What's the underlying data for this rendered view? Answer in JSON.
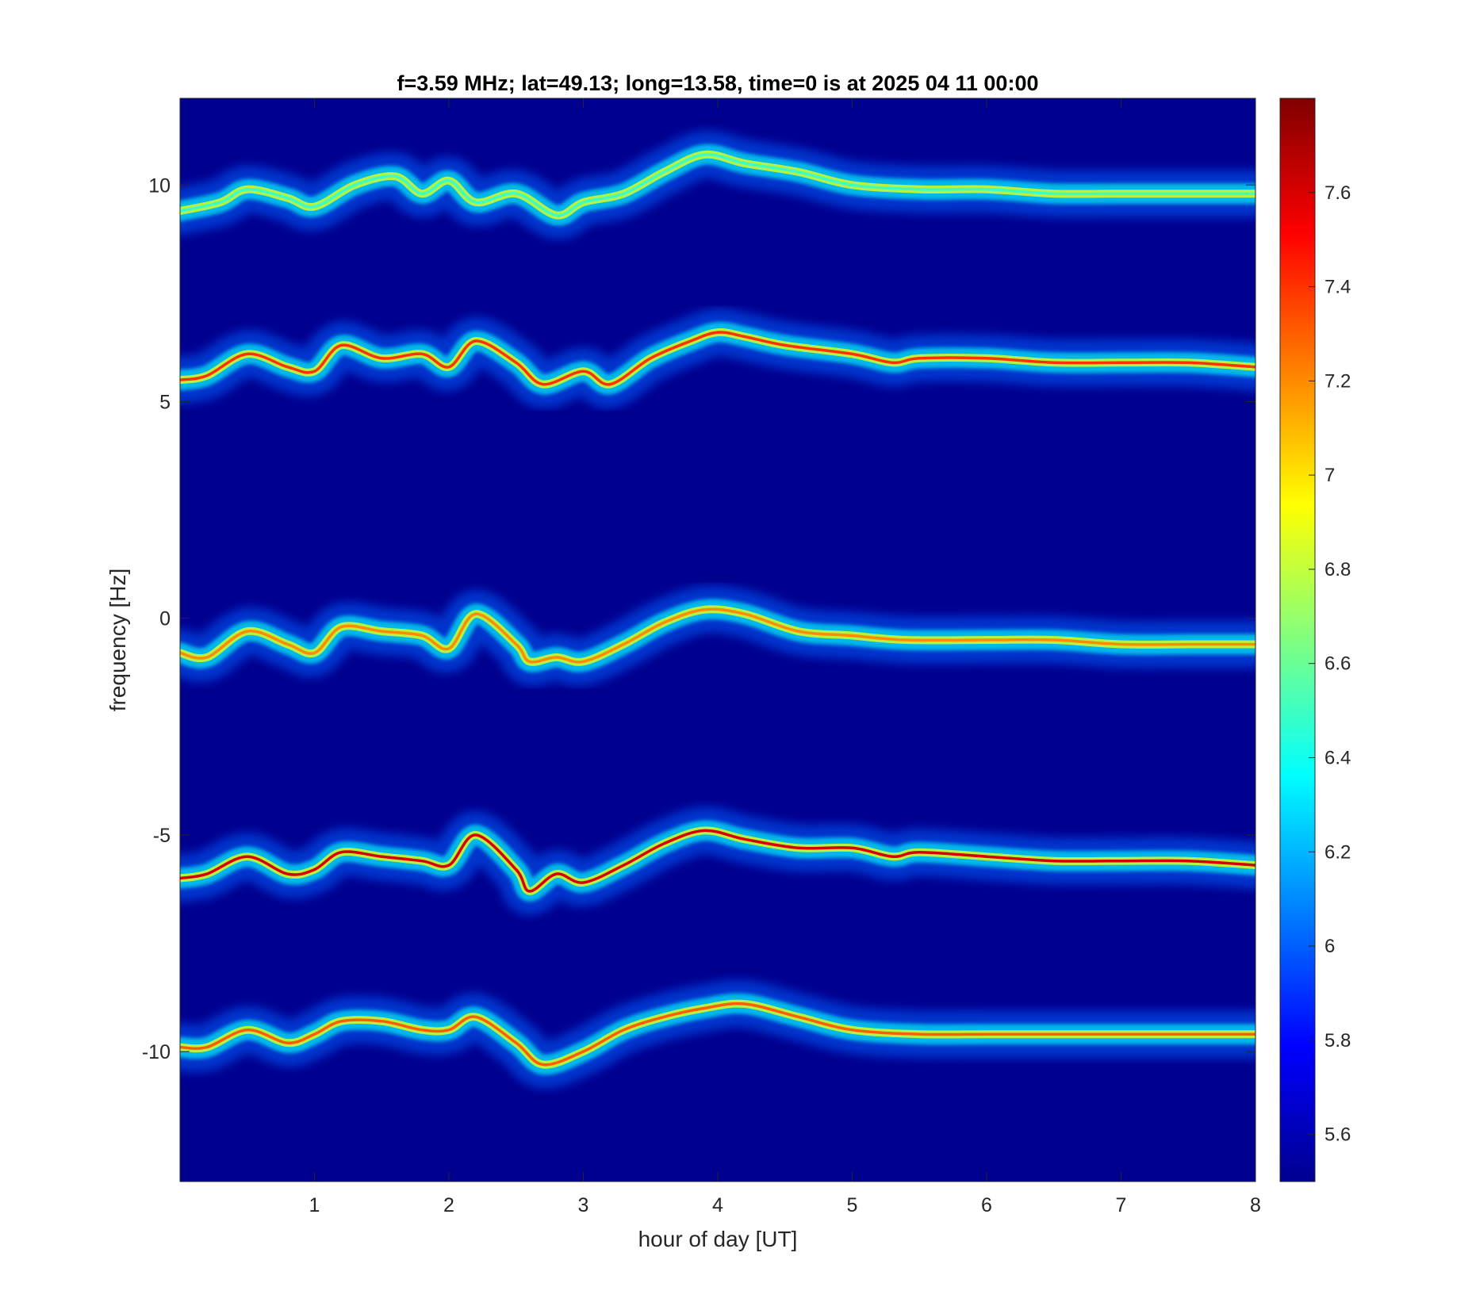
{
  "chart_data": {
    "type": "heatmap",
    "title": "f=3.59 MHz;  lat=49.13; long=13.58, time=0 is at 2025 04 11 00:00",
    "xlabel": "hour of day [UT]",
    "ylabel": "frequency [Hz]",
    "xlim": [
      0,
      8
    ],
    "ylim": [
      -13,
      12
    ],
    "xticks": [
      1,
      2,
      3,
      4,
      5,
      6,
      7,
      8
    ],
    "xtick_labels": [
      "1",
      "2",
      "3",
      "4",
      "5",
      "6",
      "7",
      "8"
    ],
    "yticks": [
      10,
      5,
      0,
      -5,
      -10
    ],
    "ytick_labels": [
      "10",
      "5",
      "0",
      "-5",
      "-10"
    ],
    "colorbar": {
      "colormap": "jet",
      "clim": [
        5.5,
        7.8
      ],
      "ticks": [
        7.6,
        7.4,
        7.2,
        7,
        6.8,
        6.6,
        6.4,
        6.2,
        6,
        5.8,
        5.6
      ],
      "tick_labels": [
        "7.6",
        "7.4",
        "7.2",
        "7",
        "6.8",
        "6.6",
        "6.4",
        "6.2",
        "6",
        "5.8",
        "5.6"
      ]
    },
    "background_color": "#00008f",
    "traces": [
      {
        "offset": 10,
        "peak_level": 6.5,
        "x": [
          0,
          0.3,
          0.5,
          0.8,
          1.0,
          1.3,
          1.6,
          1.8,
          2.0,
          2.2,
          2.5,
          2.8,
          3.0,
          3.3,
          3.6,
          3.9,
          4.2,
          4.6,
          5.0,
          5.5,
          6.0,
          6.5,
          7.0,
          7.5,
          8.0
        ],
        "y": [
          9.4,
          9.6,
          9.9,
          9.7,
          9.5,
          10.0,
          10.2,
          9.8,
          10.1,
          9.6,
          9.8,
          9.3,
          9.6,
          9.8,
          10.3,
          10.7,
          10.5,
          10.3,
          10.0,
          9.9,
          9.9,
          9.8,
          9.8,
          9.8,
          9.8
        ]
      },
      {
        "offset": 5,
        "peak_level": 7.4,
        "x": [
          0,
          0.2,
          0.5,
          0.8,
          1.0,
          1.2,
          1.5,
          1.8,
          2.0,
          2.2,
          2.5,
          2.7,
          3.0,
          3.2,
          3.5,
          3.8,
          4.0,
          4.2,
          4.5,
          5.0,
          5.3,
          5.5,
          6.0,
          6.5,
          7.0,
          7.5,
          8.0
        ],
        "y": [
          5.5,
          5.6,
          6.1,
          5.8,
          5.7,
          6.3,
          6.0,
          6.1,
          5.8,
          6.4,
          5.9,
          5.4,
          5.7,
          5.4,
          6.0,
          6.4,
          6.6,
          6.5,
          6.3,
          6.1,
          5.9,
          6.0,
          6.0,
          5.9,
          5.9,
          5.9,
          5.8
        ]
      },
      {
        "offset": 0,
        "peak_level": 7.2,
        "x": [
          0,
          0.2,
          0.5,
          0.8,
          1.0,
          1.2,
          1.5,
          1.8,
          2.0,
          2.2,
          2.5,
          2.6,
          2.8,
          3.0,
          3.3,
          3.6,
          3.9,
          4.2,
          4.6,
          5.0,
          5.4,
          6.0,
          6.5,
          7.0,
          7.5,
          8.0
        ],
        "y": [
          -0.8,
          -0.9,
          -0.3,
          -0.6,
          -0.8,
          -0.2,
          -0.3,
          -0.4,
          -0.7,
          0.1,
          -0.6,
          -1.0,
          -0.9,
          -1.0,
          -0.6,
          -0.1,
          0.2,
          0.1,
          -0.3,
          -0.4,
          -0.5,
          -0.5,
          -0.5,
          -0.6,
          -0.6,
          -0.6
        ]
      },
      {
        "offset": -5,
        "peak_level": 7.6,
        "x": [
          0,
          0.2,
          0.5,
          0.8,
          1.0,
          1.2,
          1.5,
          1.8,
          2.0,
          2.2,
          2.5,
          2.6,
          2.8,
          3.0,
          3.3,
          3.6,
          3.9,
          4.2,
          4.6,
          5.0,
          5.3,
          5.5,
          6.0,
          6.5,
          7.0,
          7.5,
          8.0
        ],
        "y": [
          -6.0,
          -5.9,
          -5.5,
          -5.9,
          -5.8,
          -5.4,
          -5.5,
          -5.6,
          -5.7,
          -5.0,
          -5.8,
          -6.3,
          -5.9,
          -6.1,
          -5.7,
          -5.2,
          -4.9,
          -5.1,
          -5.3,
          -5.3,
          -5.5,
          -5.4,
          -5.5,
          -5.6,
          -5.6,
          -5.6,
          -5.7
        ]
      },
      {
        "offset": -10,
        "peak_level": 7.3,
        "x": [
          0,
          0.2,
          0.5,
          0.8,
          1.0,
          1.2,
          1.5,
          1.8,
          2.0,
          2.2,
          2.5,
          2.7,
          3.0,
          3.3,
          3.6,
          3.9,
          4.2,
          4.6,
          5.0,
          5.5,
          6.0,
          6.5,
          7.0,
          7.5,
          8.0
        ],
        "y": [
          -9.9,
          -9.9,
          -9.5,
          -9.8,
          -9.6,
          -9.3,
          -9.3,
          -9.5,
          -9.5,
          -9.2,
          -9.8,
          -10.3,
          -10.0,
          -9.5,
          -9.2,
          -9.0,
          -8.9,
          -9.2,
          -9.5,
          -9.6,
          -9.6,
          -9.6,
          -9.6,
          -9.6,
          -9.6
        ]
      }
    ]
  }
}
